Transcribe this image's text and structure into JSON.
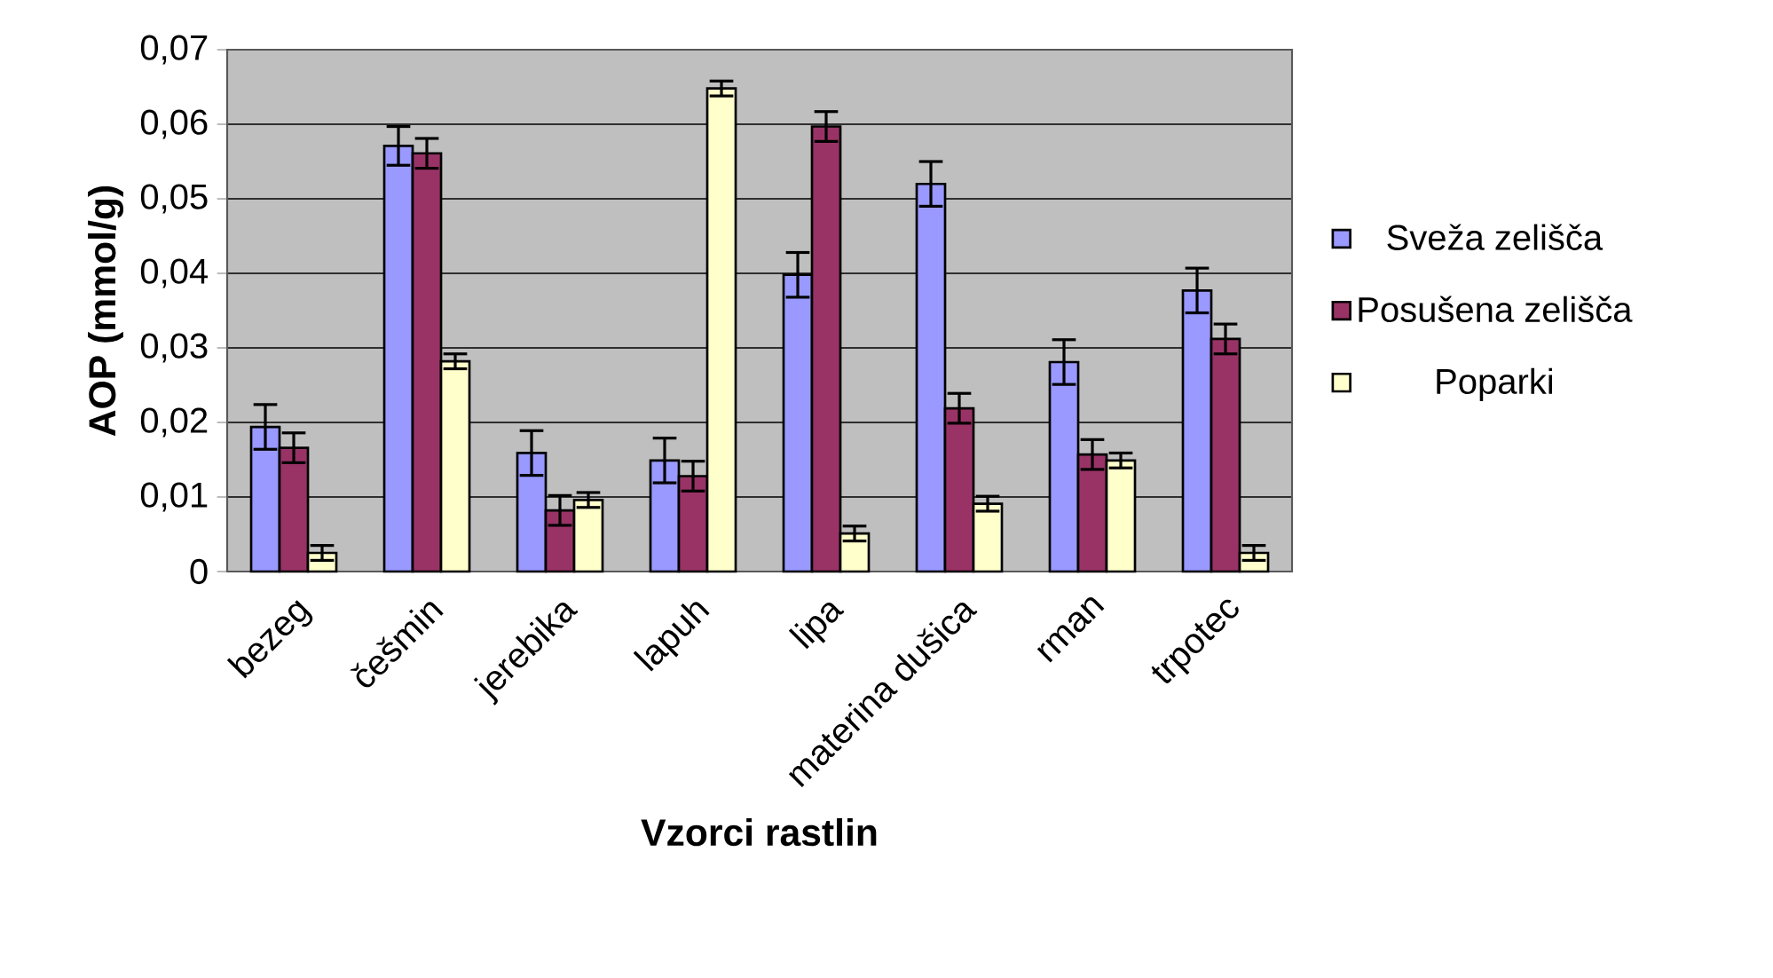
{
  "chart_data": {
    "type": "bar",
    "xlabel": "Vzorci rastlin",
    "ylabel": "AOP (mmol/g)",
    "categories": [
      "bezeg",
      "češmin",
      "jerebika",
      "lapuh",
      "lipa",
      "materina dušica",
      "rman",
      "trpotec"
    ],
    "series": [
      {
        "name": "Sveža zelišča",
        "color": "#9999ff",
        "values": [
          0.0194,
          0.0571,
          0.0159,
          0.0149,
          0.0398,
          0.052,
          0.0281,
          0.0377
        ],
        "errors": [
          0.003,
          0.0026,
          0.003,
          0.003,
          0.003,
          0.003,
          0.003,
          0.003
        ]
      },
      {
        "name": "Posušena zelišča",
        "color": "#993366",
        "values": [
          0.0166,
          0.0561,
          0.0082,
          0.0128,
          0.0597,
          0.0219,
          0.0157,
          0.0312
        ],
        "errors": [
          0.002,
          0.002,
          0.002,
          0.002,
          0.002,
          0.002,
          0.002,
          0.002
        ]
      },
      {
        "name": "Poparki",
        "color": "#ffffcc",
        "values": [
          0.0025,
          0.0282,
          0.0096,
          0.0648,
          0.0051,
          0.0091,
          0.0149,
          0.0025
        ],
        "errors": [
          0.001,
          0.001,
          0.001,
          0.001,
          0.001,
          0.001,
          0.001,
          0.001
        ]
      }
    ],
    "ylim": [
      0,
      0.07
    ],
    "yticks": [
      {
        "value": 0,
        "label": "0"
      },
      {
        "value": 0.01,
        "label": "0,01"
      },
      {
        "value": 0.02,
        "label": "0,02"
      },
      {
        "value": 0.03,
        "label": "0,03"
      },
      {
        "value": 0.04,
        "label": "0,04"
      },
      {
        "value": 0.05,
        "label": "0,05"
      },
      {
        "value": 0.06,
        "label": "0,06"
      },
      {
        "value": 0.07,
        "label": "0,07"
      }
    ],
    "grid": "y",
    "legend": "right"
  }
}
